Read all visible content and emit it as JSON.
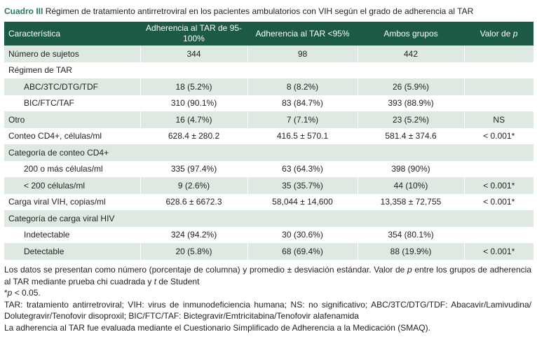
{
  "caption": {
    "label": "Cuadro III",
    "text": "Régimen de tratamiento antirretroviral en los pacientes ambulatorios con VIH según el grado de adherencia al TAR"
  },
  "table": {
    "header": [
      "Característica",
      "Adherencia al TAR de 95-100%",
      "Adherencia al TAR <95%",
      "Ambos grupos",
      [
        {
          "text": "Valor de "
        },
        {
          "italic": "p"
        }
      ]
    ],
    "rows": [
      [
        "Número de sujetos",
        "344",
        "98",
        "442"
      ],
      [
        "Régimen de TAR"
      ],
      [
        "ABC/3TC/DTG/TDF",
        "18 (5.2%)",
        "8 (8.2%)",
        "26 (5.9%)"
      ],
      [
        "BIC/FTC/TAF",
        "310 (90.1%)",
        "83 (84.7%)",
        "393 (88.9%)"
      ],
      [
        "Otro",
        "16 (4.7%)",
        "7 (7.1%)",
        "23 (5.2%)",
        "NS"
      ],
      [
        "Conteo CD4+, células/ml",
        "628.4 ± 280.2",
        "416.5 ± 570.1",
        "581.4 ± 374.6",
        "< 0.001*"
      ],
      [
        "Categoría de conteo CD4+"
      ],
      [
        "200 o más células/ml",
        "335 (97.4%)",
        "63 (64.3%)",
        "398 (90%)"
      ],
      [
        "< 200 células/ml",
        "9 (2.6%)",
        "35 (35.7%)",
        "44 (10%)",
        "< 0.001*"
      ],
      [
        "Carga viral VIH, copias/ml",
        "628.6 ± 6672.3",
        "58,044 ± 14,600",
        "13,358 ± 72,755",
        "< 0.001*"
      ],
      [
        "Categoría de carga viral HIV"
      ],
      [
        "Indetectable",
        "324 (94.2%)",
        "30 (30.6%)",
        "354 (80.1%)"
      ],
      [
        "Detectable",
        "20 (5.8%)",
        "68 (69.4%)",
        "88 (19.9%)",
        "< 0.001*"
      ]
    ]
  },
  "notes": [
    [
      "Los datos se presentan como número (porcentaje de columna) y promedio ± desviación estándar. Valor de ",
      {
        "italic": "p"
      },
      " entre los grupos de adherencia al TAR mediante prueba chi cuadrada y ",
      {
        "italic": "t"
      },
      " de Student"
    ],
    [
      "*",
      {
        "italic": "p"
      },
      " < 0.05."
    ],
    [
      "TAR: tratamiento antirretroviral; VIH: virus de inmunodeficiencia humana; NS: no significativo; ABC/3TC/DTG/TDF: Abacavir/Lamivudina/ Dolutegravir/Tenofovir disoproxil; BIC/FTC/TAF: Bictegravir/Emtricitabina/Tenofovir alafenamida"
    ],
    [
      "La adherencia al TAR fue evaluada mediante el Cuestionario Simplificado de Adherencia a la Medicación (SMAQ)."
    ]
  ]
}
